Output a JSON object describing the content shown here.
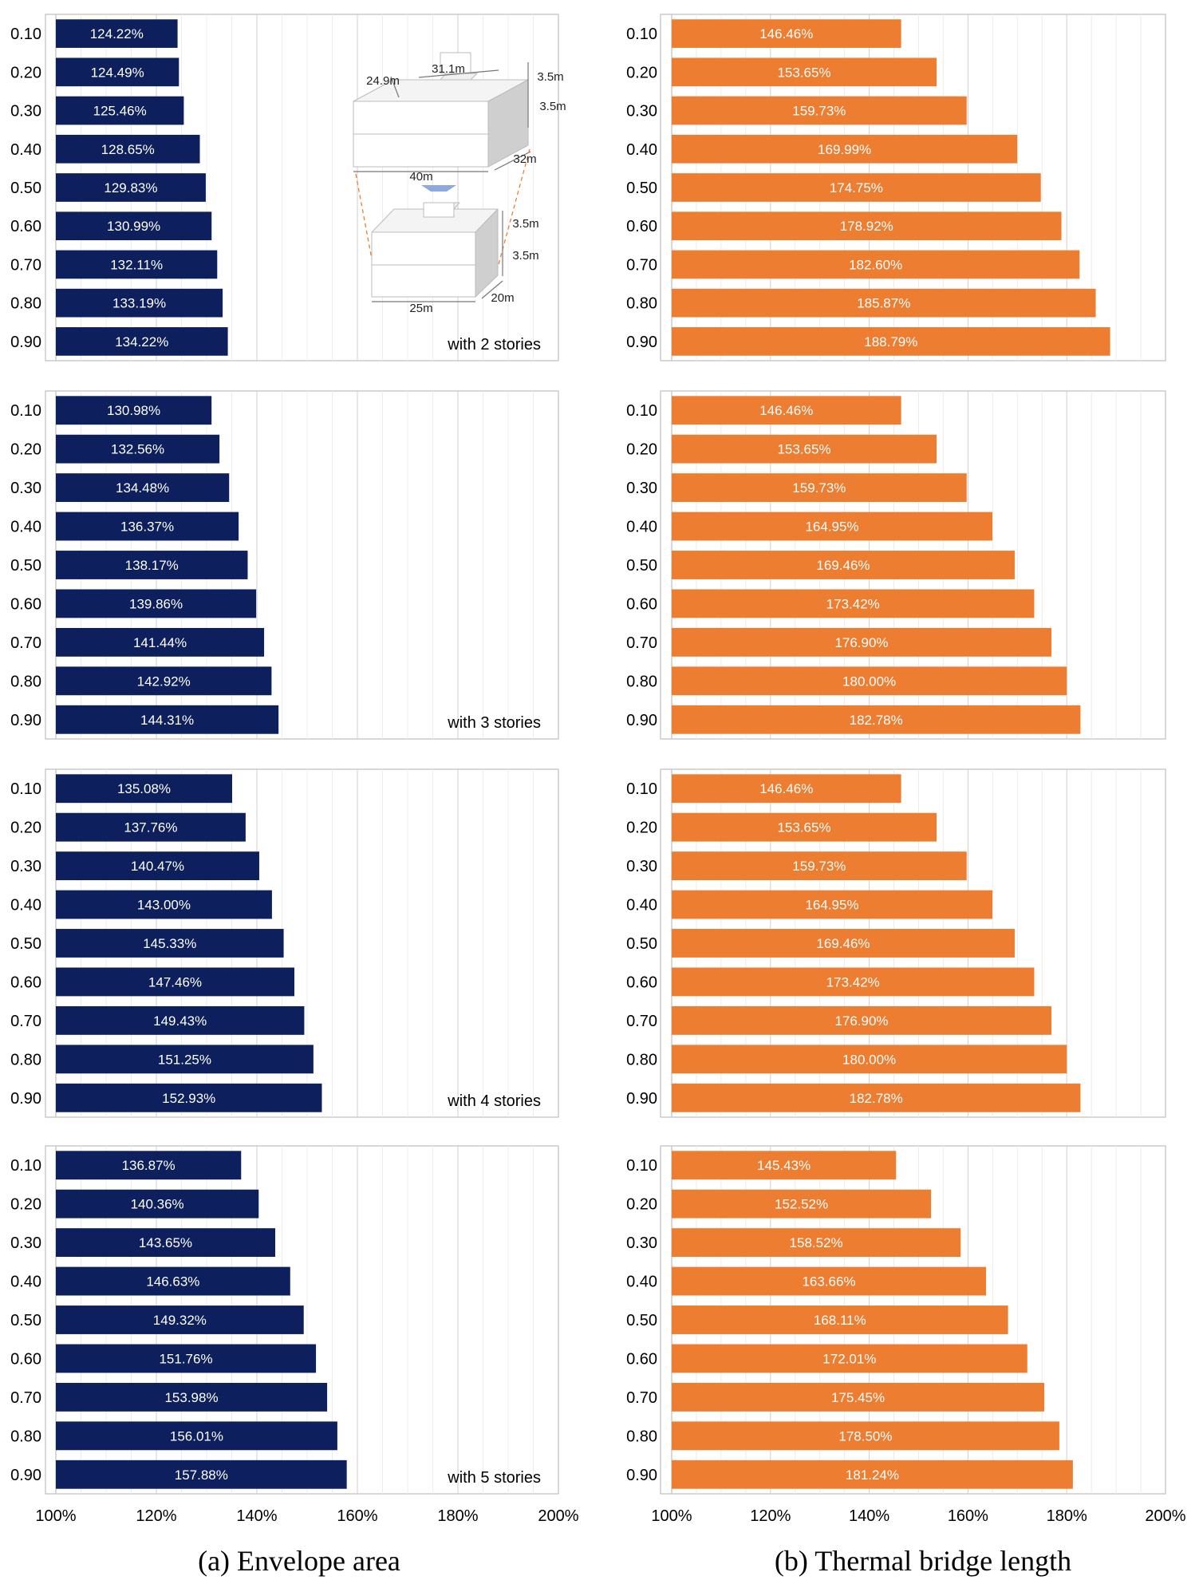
{
  "colors": {
    "envelope": "#0d1f5c",
    "thermal": "#ed7d31",
    "grid": "#d9d9d9",
    "frame": "#bfbfbf"
  },
  "captions": {
    "a": "(a) Envelope area",
    "b": "(b) Thermal bridge length"
  },
  "inset": {
    "dims": [
      "31.1m",
      "24.9m",
      "3.5m",
      "3.5m",
      "32m",
      "40m",
      "3.5m",
      "3.5m",
      "20m",
      "25m"
    ]
  },
  "chart_data": [
    {
      "type": "bar",
      "orientation": "horizontal",
      "panel": "a",
      "categories": [
        "0.10",
        "0.20",
        "0.30",
        "0.40",
        "0.50",
        "0.60",
        "0.70",
        "0.80",
        "0.90"
      ],
      "values": [
        124.22,
        124.49,
        125.46,
        128.65,
        129.83,
        130.99,
        132.11,
        133.19,
        134.22
      ],
      "labels": [
        "124.22%",
        "124.49%",
        "125.46%",
        "128.65%",
        "129.83%",
        "130.99%",
        "132.11%",
        "133.19%",
        "134.22%"
      ],
      "annotation": "with 2 stories",
      "xlim": [
        100,
        200
      ],
      "grid": true
    },
    {
      "type": "bar",
      "orientation": "horizontal",
      "panel": "b",
      "categories": [
        "0.10",
        "0.20",
        "0.30",
        "0.40",
        "0.50",
        "0.60",
        "0.70",
        "0.80",
        "0.90"
      ],
      "values": [
        146.46,
        153.65,
        159.73,
        169.99,
        174.75,
        178.92,
        182.6,
        185.87,
        188.79
      ],
      "labels": [
        "146.46%",
        "153.65%",
        "159.73%",
        "169.99%",
        "174.75%",
        "178.92%",
        "182.60%",
        "185.87%",
        "188.79%"
      ],
      "annotation": "",
      "xlim": [
        100,
        200
      ],
      "grid": true
    },
    {
      "type": "bar",
      "orientation": "horizontal",
      "panel": "a",
      "categories": [
        "0.10",
        "0.20",
        "0.30",
        "0.40",
        "0.50",
        "0.60",
        "0.70",
        "0.80",
        "0.90"
      ],
      "values": [
        130.98,
        132.56,
        134.48,
        136.37,
        138.17,
        139.86,
        141.44,
        142.92,
        144.31
      ],
      "labels": [
        "130.98%",
        "132.56%",
        "134.48%",
        "136.37%",
        "138.17%",
        "139.86%",
        "141.44%",
        "142.92%",
        "144.31%"
      ],
      "annotation": "with 3 stories",
      "xlim": [
        100,
        200
      ],
      "grid": true
    },
    {
      "type": "bar",
      "orientation": "horizontal",
      "panel": "b",
      "categories": [
        "0.10",
        "0.20",
        "0.30",
        "0.40",
        "0.50",
        "0.60",
        "0.70",
        "0.80",
        "0.90"
      ],
      "values": [
        146.46,
        153.65,
        159.73,
        164.95,
        169.46,
        173.42,
        176.9,
        180.0,
        182.78
      ],
      "labels": [
        "146.46%",
        "153.65%",
        "159.73%",
        "164.95%",
        "169.46%",
        "173.42%",
        "176.90%",
        "180.00%",
        "182.78%"
      ],
      "annotation": "",
      "xlim": [
        100,
        200
      ],
      "grid": true
    },
    {
      "type": "bar",
      "orientation": "horizontal",
      "panel": "a",
      "categories": [
        "0.10",
        "0.20",
        "0.30",
        "0.40",
        "0.50",
        "0.60",
        "0.70",
        "0.80",
        "0.90"
      ],
      "values": [
        135.08,
        137.76,
        140.47,
        143.0,
        145.33,
        147.46,
        149.43,
        151.25,
        152.93
      ],
      "labels": [
        "135.08%",
        "137.76%",
        "140.47%",
        "143.00%",
        "145.33%",
        "147.46%",
        "149.43%",
        "151.25%",
        "152.93%"
      ],
      "annotation": "with 4 stories",
      "xlim": [
        100,
        200
      ],
      "grid": true
    },
    {
      "type": "bar",
      "orientation": "horizontal",
      "panel": "b",
      "categories": [
        "0.10",
        "0.20",
        "0.30",
        "0.40",
        "0.50",
        "0.60",
        "0.70",
        "0.80",
        "0.90"
      ],
      "values": [
        146.46,
        153.65,
        159.73,
        164.95,
        169.46,
        173.42,
        176.9,
        180.0,
        182.78
      ],
      "labels": [
        "146.46%",
        "153.65%",
        "159.73%",
        "164.95%",
        "169.46%",
        "173.42%",
        "176.90%",
        "180.00%",
        "182.78%"
      ],
      "annotation": "",
      "xlim": [
        100,
        200
      ],
      "grid": true
    },
    {
      "type": "bar",
      "orientation": "horizontal",
      "panel": "a",
      "categories": [
        "0.10",
        "0.20",
        "0.30",
        "0.40",
        "0.50",
        "0.60",
        "0.70",
        "0.80",
        "0.90"
      ],
      "values": [
        136.87,
        140.36,
        143.65,
        146.63,
        149.32,
        151.76,
        153.98,
        156.01,
        157.88
      ],
      "labels": [
        "136.87%",
        "140.36%",
        "143.65%",
        "146.63%",
        "149.32%",
        "151.76%",
        "153.98%",
        "156.01%",
        "157.88%"
      ],
      "annotation": "with 5 stories",
      "xlim": [
        100,
        200
      ],
      "grid": true,
      "xticks": [
        "100%",
        "120%",
        "140%",
        "160%",
        "180%",
        "200%"
      ]
    },
    {
      "type": "bar",
      "orientation": "horizontal",
      "panel": "b",
      "categories": [
        "0.10",
        "0.20",
        "0.30",
        "0.40",
        "0.50",
        "0.60",
        "0.70",
        "0.80",
        "0.90"
      ],
      "values": [
        145.43,
        152.52,
        158.52,
        163.66,
        168.11,
        172.01,
        175.45,
        178.5,
        181.24
      ],
      "labels": [
        "145.43%",
        "152.52%",
        "158.52%",
        "163.66%",
        "168.11%",
        "172.01%",
        "175.45%",
        "178.50%",
        "181.24%"
      ],
      "annotation": "",
      "xlim": [
        100,
        200
      ],
      "grid": true,
      "xticks": [
        "100%",
        "120%",
        "140%",
        "160%",
        "180%",
        "200%"
      ]
    }
  ]
}
